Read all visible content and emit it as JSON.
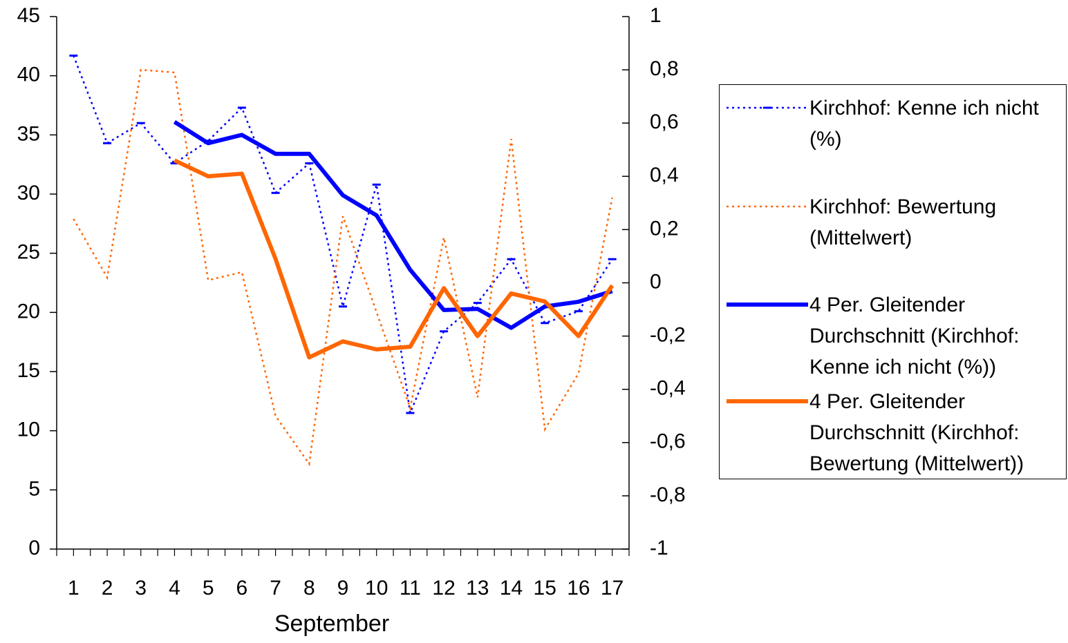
{
  "chart_data": {
    "type": "line",
    "x_label": "September",
    "categories": [
      "1",
      "2",
      "3",
      "4",
      "5",
      "6",
      "7",
      "8",
      "9",
      "10",
      "11",
      "12",
      "13",
      "14",
      "15",
      "16",
      "17"
    ],
    "series": [
      {
        "name": "Kirchhof: Kenne ich nicht (%)",
        "color": "#0000ff",
        "line_style": "dotted",
        "marker": "dash",
        "axis": "y",
        "values": [
          41.7,
          34.3,
          36.0,
          32.6,
          34.5,
          37.3,
          30.1,
          32.6,
          20.5,
          30.8,
          11.5,
          18.4,
          20.8,
          24.5,
          19.1,
          20.1,
          24.5
        ]
      },
      {
        "name": "Kirchhof: Bewertung (Mittelwert)",
        "color": "#ff6600",
        "line_style": "dotted",
        "axis": "y2",
        "values": [
          0.24,
          0.02,
          0.8,
          0.79,
          0.01,
          0.04,
          -0.5,
          -0.68,
          0.25,
          -0.11,
          -0.47,
          0.17,
          -0.43,
          0.54,
          -0.55,
          -0.34,
          0.32
        ]
      },
      {
        "name": "4 Per. Gleitender Durchschnitt (Kirchhof: Kenne ich nicht (%))",
        "color": "#0000ff",
        "line_style": "solid",
        "axis": "y",
        "values": [
          null,
          null,
          null,
          36.1,
          34.3,
          35.0,
          33.4,
          33.4,
          29.9,
          28.2,
          23.6,
          20.2,
          20.3,
          18.7,
          20.5,
          20.9,
          21.8
        ]
      },
      {
        "name": "4 Per. Gleitender Durchschnitt (Kirchhof: Bewertung (Mittelwert))",
        "color": "#ff6600",
        "line_style": "solid",
        "axis": "y2",
        "values": [
          null,
          null,
          null,
          0.46,
          0.4,
          0.41,
          0.09,
          -0.28,
          -0.22,
          -0.25,
          -0.24,
          -0.02,
          -0.2,
          -0.04,
          -0.07,
          -0.2,
          -0.01
        ]
      }
    ],
    "ylim": [
      0,
      45
    ],
    "yticks": [
      0,
      5,
      10,
      15,
      20,
      25,
      30,
      35,
      40,
      45
    ],
    "y2lim": [
      -1,
      1
    ],
    "y2ticks": [
      -1,
      {
        "value": -0.8,
        "label": "-0,8"
      },
      {
        "value": -0.6,
        "label": "-0,6"
      },
      {
        "value": -0.4,
        "label": "-0,4"
      },
      {
        "value": -0.2,
        "label": "-0,2"
      },
      0,
      {
        "value": 0.2,
        "label": "0,2"
      },
      {
        "value": 0.4,
        "label": "0,4"
      },
      {
        "value": 0.6,
        "label": "0,6"
      },
      {
        "value": 0.8,
        "label": "0,8"
      },
      1
    ],
    "legend": "right"
  }
}
